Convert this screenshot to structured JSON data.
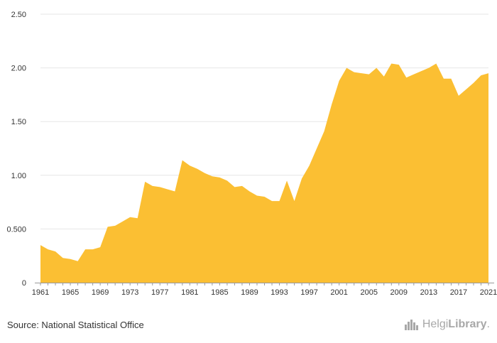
{
  "chart_data": {
    "type": "area",
    "title": "",
    "xlabel": "",
    "ylabel": "",
    "ylim": [
      0,
      2.5
    ],
    "yticks": [
      "0",
      "0.500",
      "1.00",
      "1.50",
      "2.00",
      "2.50"
    ],
    "xticks": [
      "1961",
      "1965",
      "1969",
      "1973",
      "1977",
      "1981",
      "1985",
      "1989",
      "1993",
      "1997",
      "2001",
      "2005",
      "2009",
      "2013",
      "2017",
      "2021"
    ],
    "grid": true,
    "fill_color": "#fbbf33",
    "series": [
      {
        "x": [
          1961,
          1962,
          1963,
          1964,
          1965,
          1966,
          1967,
          1968,
          1969,
          1970,
          1971,
          1972,
          1973,
          1974,
          1975,
          1976,
          1977,
          1978,
          1979,
          1980,
          1981,
          1982,
          1983,
          1984,
          1985,
          1986,
          1987,
          1988,
          1989,
          1990,
          1991,
          1992,
          1993,
          1994,
          1995,
          1996,
          1997,
          1998,
          1999,
          2000,
          2001,
          2002,
          2003,
          2004,
          2005,
          2006,
          2007,
          2008,
          2009,
          2010,
          2011,
          2012,
          2013,
          2014,
          2015,
          2016,
          2017,
          2018,
          2019,
          2020,
          2021
        ],
        "values": [
          0.35,
          0.31,
          0.29,
          0.23,
          0.22,
          0.2,
          0.31,
          0.31,
          0.33,
          0.52,
          0.53,
          0.57,
          0.61,
          0.6,
          0.94,
          0.9,
          0.89,
          0.87,
          0.85,
          1.14,
          1.09,
          1.06,
          1.02,
          0.99,
          0.98,
          0.95,
          0.89,
          0.9,
          0.85,
          0.81,
          0.8,
          0.76,
          0.76,
          0.95,
          0.76,
          0.97,
          1.09,
          1.25,
          1.41,
          1.66,
          1.88,
          2.0,
          1.96,
          1.95,
          1.94,
          2.0,
          1.92,
          2.04,
          2.03,
          1.91,
          1.94,
          1.97,
          2.0,
          2.04,
          1.9,
          1.9,
          1.74,
          1.8,
          1.86,
          1.93,
          1.95
        ]
      }
    ]
  },
  "footer": {
    "source": "Source: National Statistical Office",
    "logo_light": "Helgi",
    "logo_bold": "Library",
    "logo_dot": "."
  }
}
